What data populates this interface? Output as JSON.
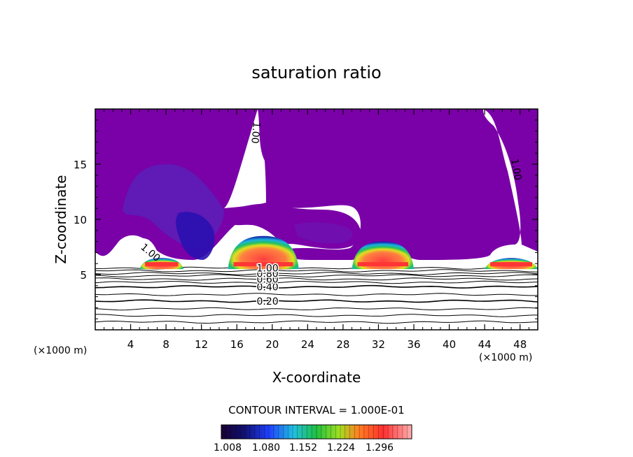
{
  "chart_data": {
    "type": "heatmap",
    "title": "saturation ratio",
    "xlabel": "X-coordinate",
    "ylabel": "Z-coordinate",
    "x_unit_left": "(×1000 m)",
    "x_unit_right": "(×1000 m)",
    "xlim": [
      0,
      50
    ],
    "ylim": [
      0,
      20
    ],
    "x_ticks": [
      4,
      8,
      12,
      16,
      20,
      24,
      28,
      32,
      36,
      40,
      44,
      48
    ],
    "y_ticks": [
      5,
      10,
      15
    ],
    "contour_interval_text": "CONTOUR INTERVAL = 1.000E-01",
    "contour_lines": [
      {
        "label": "0.20",
        "z": 2.6
      },
      {
        "label": "0.40",
        "z": 3.9
      },
      {
        "label": "0.60",
        "z": 4.6
      },
      {
        "label": "0.80",
        "z": 5.1
      },
      {
        "label": "1.00",
        "z": 5.6
      }
    ],
    "other_contour_labels": [
      "1.00",
      "1.00",
      "1.00"
    ],
    "colorbar_labels": [
      "1.008",
      "1.080",
      "1.152",
      "1.224",
      "1.296"
    ],
    "colorbar_range": [
      1.008,
      1.3
    ],
    "supersaturated_cores": [
      {
        "x_start": 5,
        "x_end": 10,
        "z_base": 5.5,
        "z_top": 6.5
      },
      {
        "x_start": 15,
        "x_end": 23,
        "z_base": 5.5,
        "z_top": 8.5
      },
      {
        "x_start": 29,
        "x_end": 36,
        "z_base": 5.5,
        "z_top": 8.0
      },
      {
        "x_start": 44,
        "x_end": 50,
        "z_base": 5.5,
        "z_top": 6.5
      }
    ],
    "colors": {
      "purple_background": "#7a00a8",
      "deep_blue": "#1a1acc",
      "red_core": "#ff4040",
      "grid": "#000000"
    }
  }
}
